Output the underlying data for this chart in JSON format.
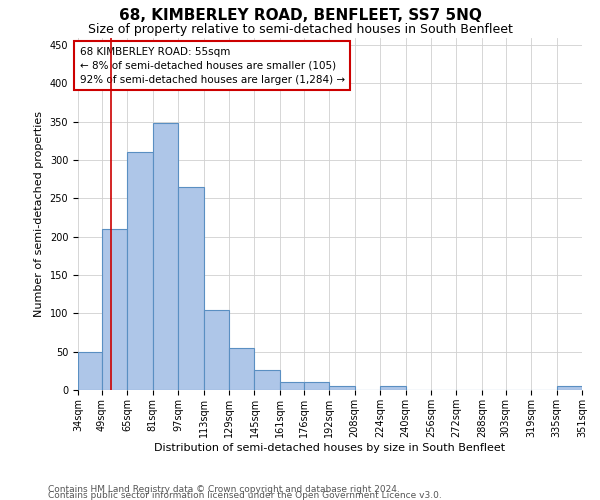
{
  "title": "68, KIMBERLEY ROAD, BENFLEET, SS7 5NQ",
  "subtitle": "Size of property relative to semi-detached houses in South Benfleet",
  "xlabel": "Distribution of semi-detached houses by size in South Benfleet",
  "ylabel": "Number of semi-detached properties",
  "footer1": "Contains HM Land Registry data © Crown copyright and database right 2024.",
  "footer2": "Contains public sector information licensed under the Open Government Licence v3.0.",
  "annotation_line1": "68 KIMBERLEY ROAD: 55sqm",
  "annotation_line2": "← 8% of semi-detached houses are smaller (105)",
  "annotation_line3": "92% of semi-detached houses are larger (1,284) →",
  "bar_left_edges": [
    34,
    49,
    65,
    81,
    97,
    113,
    129,
    145,
    161,
    176,
    192,
    208,
    224,
    240,
    256,
    272,
    288,
    303,
    319,
    335
  ],
  "bar_widths": [
    15,
    16,
    16,
    16,
    16,
    16,
    16,
    16,
    15,
    16,
    16,
    16,
    16,
    16,
    16,
    16,
    15,
    16,
    16,
    16
  ],
  "bar_heights": [
    50,
    210,
    311,
    349,
    265,
    105,
    55,
    26,
    11,
    10,
    5,
    0,
    5,
    0,
    0,
    0,
    0,
    0,
    0,
    5
  ],
  "bar_color": "#aec6e8",
  "bar_edgecolor": "#5a8fc2",
  "bar_linewidth": 0.8,
  "tick_labels": [
    "34sqm",
    "49sqm",
    "65sqm",
    "81sqm",
    "97sqm",
    "113sqm",
    "129sqm",
    "145sqm",
    "161sqm",
    "176sqm",
    "192sqm",
    "208sqm",
    "224sqm",
    "240sqm",
    "256sqm",
    "272sqm",
    "288sqm",
    "303sqm",
    "319sqm",
    "335sqm",
    "351sqm"
  ],
  "property_size": 55,
  "red_line_color": "#cc0000",
  "annotation_box_color": "#cc0000",
  "ylim": [
    0,
    460
  ],
  "yticks": [
    0,
    50,
    100,
    150,
    200,
    250,
    300,
    350,
    400,
    450
  ],
  "grid_color": "#d0d0d0",
  "background_color": "#ffffff",
  "title_fontsize": 11,
  "subtitle_fontsize": 9,
  "axis_label_fontsize": 8,
  "tick_fontsize": 7,
  "annotation_fontsize": 7.5,
  "footer_fontsize": 6.5
}
